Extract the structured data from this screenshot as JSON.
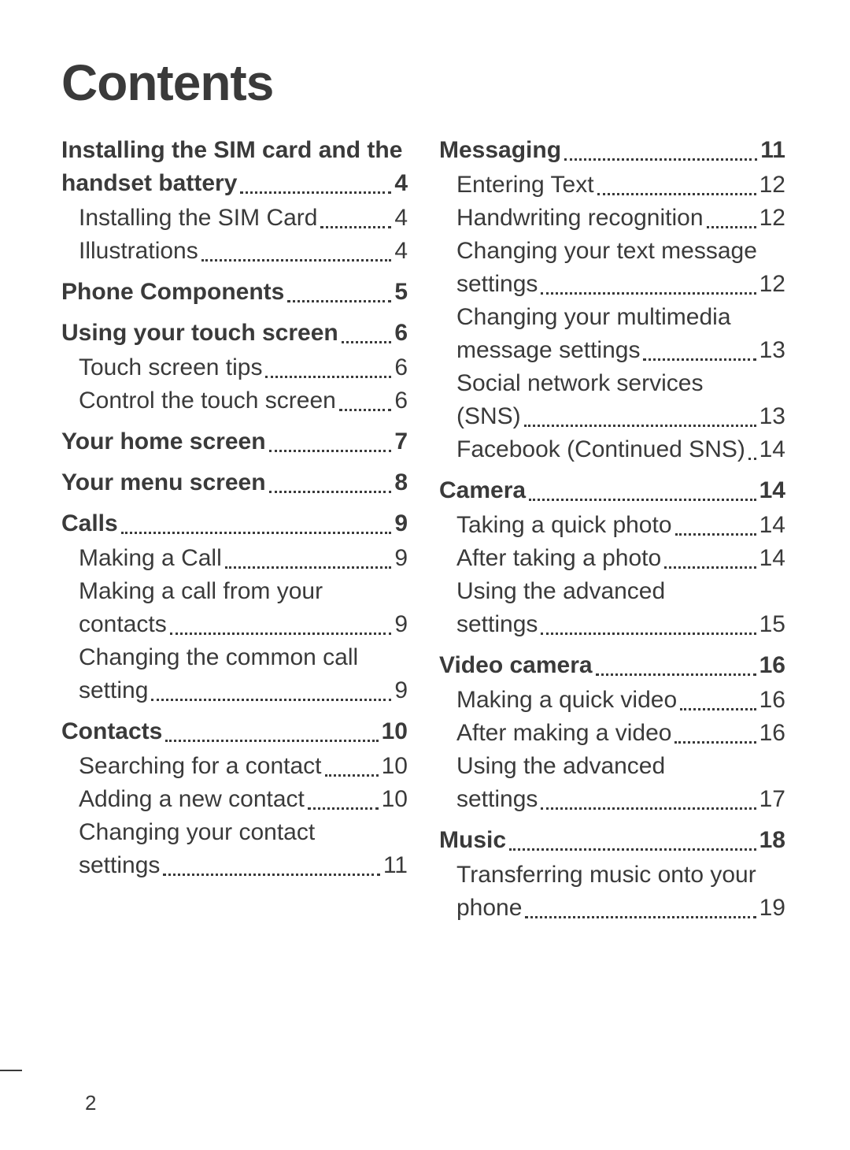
{
  "title": "Contents",
  "page_number": "2",
  "columns": [
    {
      "sections": [
        {
          "heading": {
            "lines": [
              "Installing the SIM card and the",
              "handset battery"
            ],
            "page": "4"
          },
          "items": [
            {
              "lines": [
                "Installing the SIM Card"
              ],
              "page": "4"
            },
            {
              "lines": [
                "Illustrations"
              ],
              "page": "4"
            }
          ]
        },
        {
          "heading": {
            "lines": [
              "Phone Components"
            ],
            "page": "5"
          },
          "items": []
        },
        {
          "heading": {
            "lines": [
              "Using your touch screen"
            ],
            "page": "6"
          },
          "items": [
            {
              "lines": [
                "Touch screen tips"
              ],
              "page": "6"
            },
            {
              "lines": [
                "Control the touch screen"
              ],
              "page": "6"
            }
          ]
        },
        {
          "heading": {
            "lines": [
              "Your home screen"
            ],
            "page": "7"
          },
          "items": []
        },
        {
          "heading": {
            "lines": [
              "Your menu screen"
            ],
            "page": "8"
          },
          "items": []
        },
        {
          "heading": {
            "lines": [
              "Calls"
            ],
            "page": "9"
          },
          "items": [
            {
              "lines": [
                "Making a Call"
              ],
              "page": "9"
            },
            {
              "lines": [
                "Making a call from your",
                "contacts"
              ],
              "page": "9"
            },
            {
              "lines": [
                "Changing the common call",
                "setting"
              ],
              "page": "9"
            }
          ]
        },
        {
          "heading": {
            "lines": [
              "Contacts"
            ],
            "page": "10"
          },
          "items": [
            {
              "lines": [
                "Searching for a contact"
              ],
              "page": "10"
            },
            {
              "lines": [
                "Adding a new contact"
              ],
              "page": "10"
            },
            {
              "lines": [
                "Changing your contact",
                "settings"
              ],
              "page": "11"
            }
          ]
        }
      ]
    },
    {
      "sections": [
        {
          "heading": {
            "lines": [
              "Messaging"
            ],
            "page": "11"
          },
          "items": [
            {
              "lines": [
                "Entering Text"
              ],
              "page": "12"
            },
            {
              "lines": [
                "Handwriting recognition"
              ],
              "page": "12"
            },
            {
              "lines": [
                "Changing your text message",
                "settings"
              ],
              "page": "12"
            },
            {
              "lines": [
                "Changing your multimedia",
                "message settings"
              ],
              "page": "13"
            },
            {
              "lines": [
                "Social network services",
                "(SNS)"
              ],
              "page": "13"
            },
            {
              "lines": [
                "Facebook (Continued SNS)"
              ],
              "page": "14",
              "tight": true
            }
          ]
        },
        {
          "heading": {
            "lines": [
              "Camera"
            ],
            "page": "14"
          },
          "items": [
            {
              "lines": [
                "Taking a quick photo"
              ],
              "page": "14"
            },
            {
              "lines": [
                "After taking a photo"
              ],
              "page": "14"
            },
            {
              "lines": [
                "Using the advanced",
                "settings"
              ],
              "page": "15"
            }
          ]
        },
        {
          "heading": {
            "lines": [
              "Video camera"
            ],
            "page": "16"
          },
          "items": [
            {
              "lines": [
                "Making a quick video"
              ],
              "page": "16"
            },
            {
              "lines": [
                "After making a video"
              ],
              "page": "16"
            },
            {
              "lines": [
                "Using the advanced",
                "settings"
              ],
              "page": "17"
            }
          ]
        },
        {
          "heading": {
            "lines": [
              "Music"
            ],
            "page": "18"
          },
          "items": [
            {
              "lines": [
                "Transferring music onto your",
                "phone"
              ],
              "page": "19"
            }
          ]
        }
      ]
    }
  ]
}
